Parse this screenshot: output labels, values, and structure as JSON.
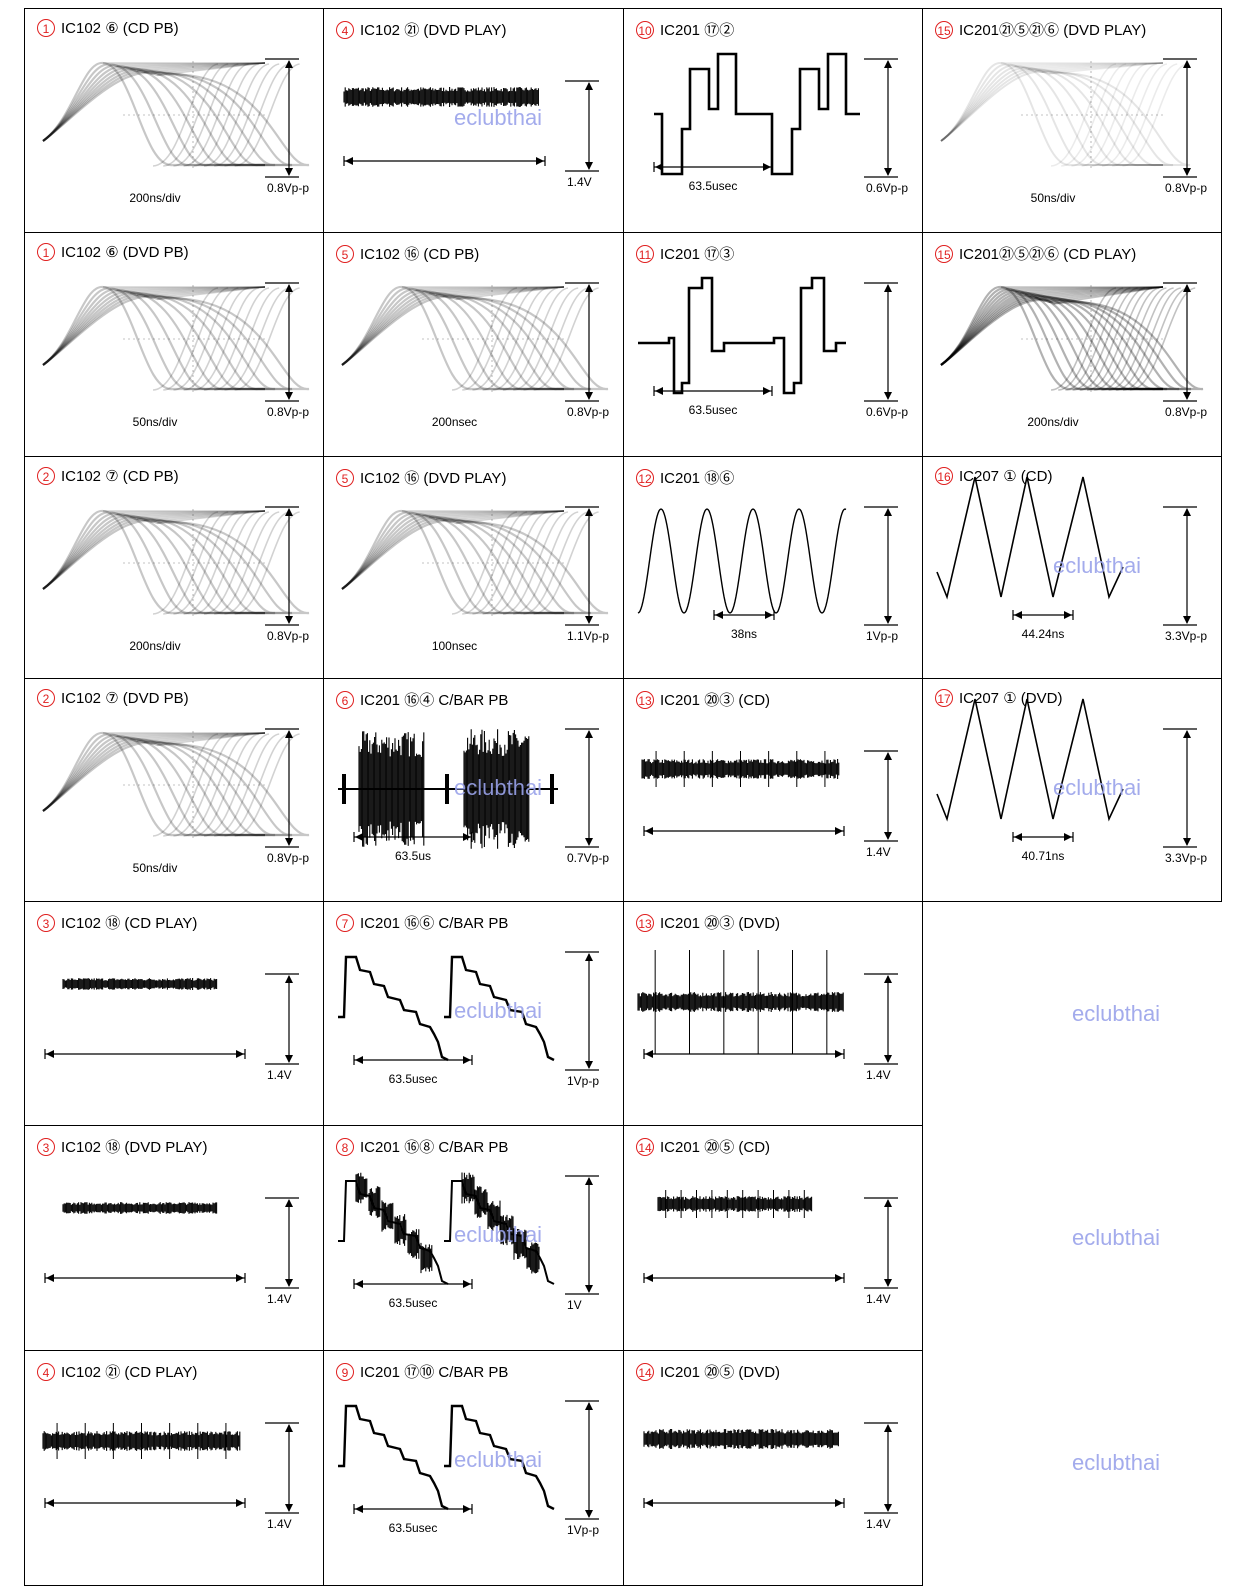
{
  "watermark": "eclubthai",
  "colors": {
    "number_circle": "#e02020",
    "watermark": "#9aa3ea",
    "trace": "#000000"
  },
  "panels": [
    {
      "num": "1",
      "title": "IC102 ⑥  (CD PB)",
      "wave": "eye",
      "amp_label": "0.8Vp-p",
      "time_label": "200ns/div",
      "watermark": false
    },
    {
      "num": "4",
      "title": "IC102 ㉑  (DVD PLAY)",
      "wave": "noise",
      "amp_label": "1.4V",
      "time_label": "",
      "watermark": true
    },
    {
      "num": "10",
      "title": "IC201 ⑰②",
      "wave": "square_step",
      "amp_label": "0.6Vp-p",
      "time_label": "63.5usec",
      "watermark": false
    },
    {
      "num": "15",
      "title": "IC201㉑⑤㉑⑥ (DVD PLAY)",
      "wave": "eye_faint",
      "amp_label": "0.8Vp-p",
      "time_label": "50ns/div",
      "watermark": false
    },
    {
      "num": "1",
      "title": "IC102 ⑥  (DVD PB)",
      "wave": "eye",
      "amp_label": "0.8Vp-p",
      "time_label": "50ns/div",
      "watermark": false
    },
    {
      "num": "5",
      "title": "IC102 ⑯ (CD PB)",
      "wave": "eye",
      "amp_label": "0.8Vp-p",
      "time_label": "200nsec",
      "watermark": false
    },
    {
      "num": "11",
      "title": "IC201 ⑰③",
      "wave": "square_step2",
      "amp_label": "0.6Vp-p",
      "time_label": "63.5usec",
      "watermark": false
    },
    {
      "num": "15",
      "title": "IC201㉑⑤㉑⑥ (CD PLAY)",
      "wave": "eye_dense",
      "amp_label": "0.8Vp-p",
      "time_label": "200ns/div",
      "watermark": false
    },
    {
      "num": "2",
      "title": "IC102 ⑦  (CD PB)",
      "wave": "eye",
      "amp_label": "0.8Vp-p",
      "time_label": "200ns/div",
      "watermark": false
    },
    {
      "num": "5",
      "title": "IC102 ⑯ (DVD PLAY)",
      "wave": "eye",
      "amp_label": "1.1Vp-p",
      "time_label": "100nsec",
      "watermark": false
    },
    {
      "num": "12",
      "title": "IC201 ⑱⑥",
      "wave": "sine",
      "amp_label": "1Vp-p",
      "time_label": "38ns",
      "watermark": false
    },
    {
      "num": "16",
      "title": "IC207 ①  (CD)",
      "wave": "triangle",
      "amp_label": "3.3Vp-p",
      "time_label": "44.24ns",
      "watermark": true
    },
    {
      "num": "2",
      "title": "IC102 ⑦  (DVD PB)",
      "wave": "eye",
      "amp_label": "0.8Vp-p",
      "time_label": "50ns/div",
      "watermark": false
    },
    {
      "num": "6",
      "title": "IC201 ⑯④  C/BAR PB",
      "wave": "burst",
      "amp_label": "0.7Vp-p",
      "time_label": "63.5us",
      "watermark": true
    },
    {
      "num": "13",
      "title": "IC201 ⑳③  (CD)",
      "wave": "noise_spikes",
      "amp_label": "1.4V",
      "time_label": "",
      "watermark": false
    },
    {
      "num": "17",
      "title": "IC207 ①  (DVD)",
      "wave": "triangle",
      "amp_label": "3.3Vp-p",
      "time_label": "40.71ns",
      "watermark": true
    },
    {
      "num": "3",
      "title": "IC102 ⑱  (CD PLAY)",
      "wave": "noise_low",
      "amp_label": "1.4V",
      "time_label": "",
      "watermark": false
    },
    {
      "num": "7",
      "title": "IC201 ⑯⑥  C/BAR PB",
      "wave": "staircase",
      "amp_label": "1Vp-p",
      "time_label": "63.5usec",
      "watermark": true
    },
    {
      "num": "13",
      "title": "IC201 ⑳③  (DVD)",
      "wave": "noise_long_spikes",
      "amp_label": "1.4V",
      "time_label": "",
      "watermark": false
    },
    {
      "num": "",
      "title": "",
      "wave": "none",
      "amp_label": "",
      "time_label": "",
      "watermark": true
    },
    {
      "num": "3",
      "title": "IC102 ⑱  (DVD PLAY)",
      "wave": "noise_low",
      "amp_label": "1.4V",
      "time_label": "",
      "watermark": false
    },
    {
      "num": "8",
      "title": "IC201  ⑯⑧  C/BAR PB",
      "wave": "staircase_fat",
      "amp_label": "1V",
      "time_label": "63.5usec",
      "watermark": true
    },
    {
      "num": "14",
      "title": "IC201 ⑳⑤ (CD)",
      "wave": "noise_low_spikes",
      "amp_label": "1.4V",
      "time_label": "",
      "watermark": false
    },
    {
      "num": "",
      "title": "",
      "wave": "none",
      "amp_label": "",
      "time_label": "",
      "watermark": true
    },
    {
      "num": "4",
      "title": "IC102 ㉑  (CD PLAY)",
      "wave": "noise_spikes",
      "amp_label": "1.4V",
      "time_label": "",
      "watermark": false
    },
    {
      "num": "9",
      "title": "IC201  ⑰⑩  C/BAR PB",
      "wave": "staircase",
      "amp_label": "1Vp-p",
      "time_label": "63.5usec",
      "watermark": true
    },
    {
      "num": "14",
      "title": "IC201 ⑳⑤ (DVD)",
      "wave": "noise",
      "amp_label": "1.4V",
      "time_label": "",
      "watermark": false
    },
    {
      "num": "",
      "title": "",
      "wave": "none",
      "amp_label": "",
      "time_label": "",
      "watermark": true
    }
  ]
}
